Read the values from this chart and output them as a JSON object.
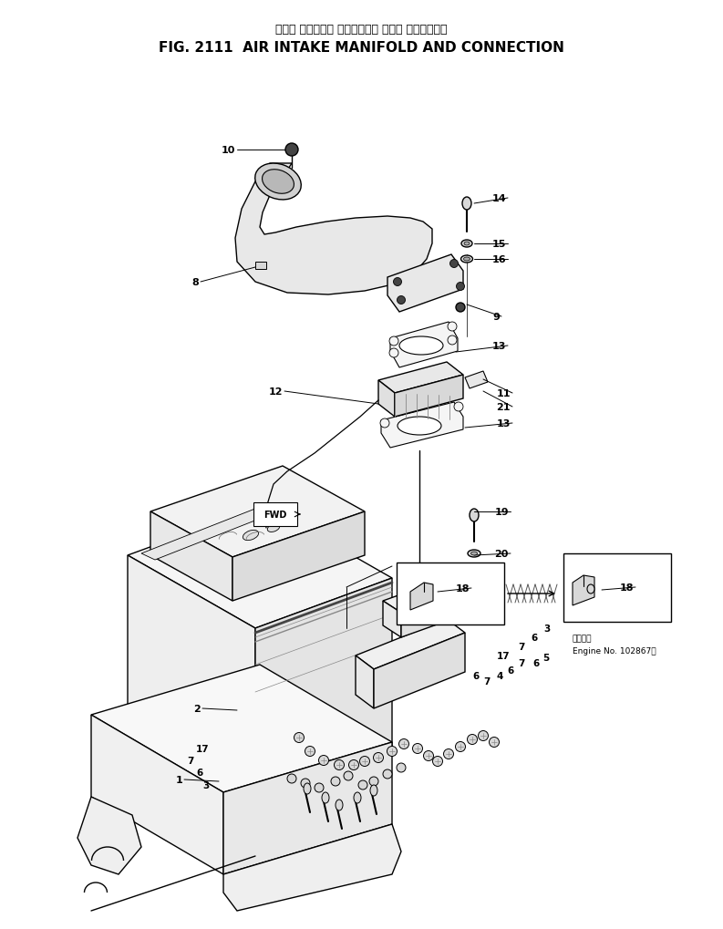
{
  "title_japanese": "エアー インテーク マニホールド および コネクション",
  "title_english": "FIG. 2111  AIR INTAKE MANIFOLD AND CONNECTION",
  "bg_color": "#ffffff",
  "line_color": "#000000",
  "engine_note_text1": "適用号機",
  "engine_note_text2": "Engine No. 102867～"
}
